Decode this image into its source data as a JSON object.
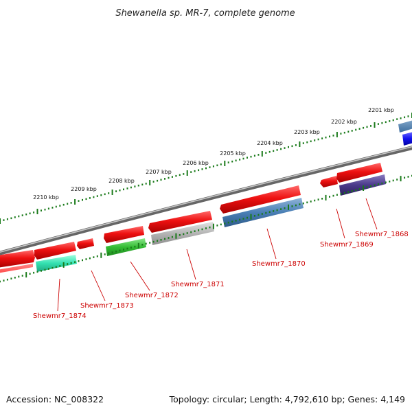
{
  "title": "Shewanella sp. MR-7, complete genome",
  "kbp_labels": [
    "2201 kbp",
    "2202 kbp",
    "2203 kbp",
    "2204 kbp",
    "2205 kbp",
    "2206 kbp",
    "2207 kbp",
    "2208 kbp",
    "2209 kbp",
    "2210 kbp"
  ],
  "gene_labels": [
    "Shewmr7_1868",
    "Shewmr7_1869",
    "Shewmr7_1870",
    "Shewmr7_1871",
    "Shewmr7_1872",
    "Shewmr7_1873",
    "Shewmr7_1874"
  ],
  "footer": {
    "accession": "Accession: NC_008322",
    "stats": "Topology: circular; Length: 4,792,610 bp; Genes: 4,149"
  },
  "colors": {
    "backbone": "#8a8a8a",
    "gc_ticks": "#1a7a1a",
    "red_gene": "#ee1111",
    "label": "#cc0000",
    "steelblue_gene": "#4a7fb5",
    "purple_gene": "#4a3a8a",
    "gray_gene": "#b4b4b4",
    "green_gene": "#33bb33",
    "cyan_gene": "#33e0b0",
    "blue_gene": "#1111ee"
  }
}
